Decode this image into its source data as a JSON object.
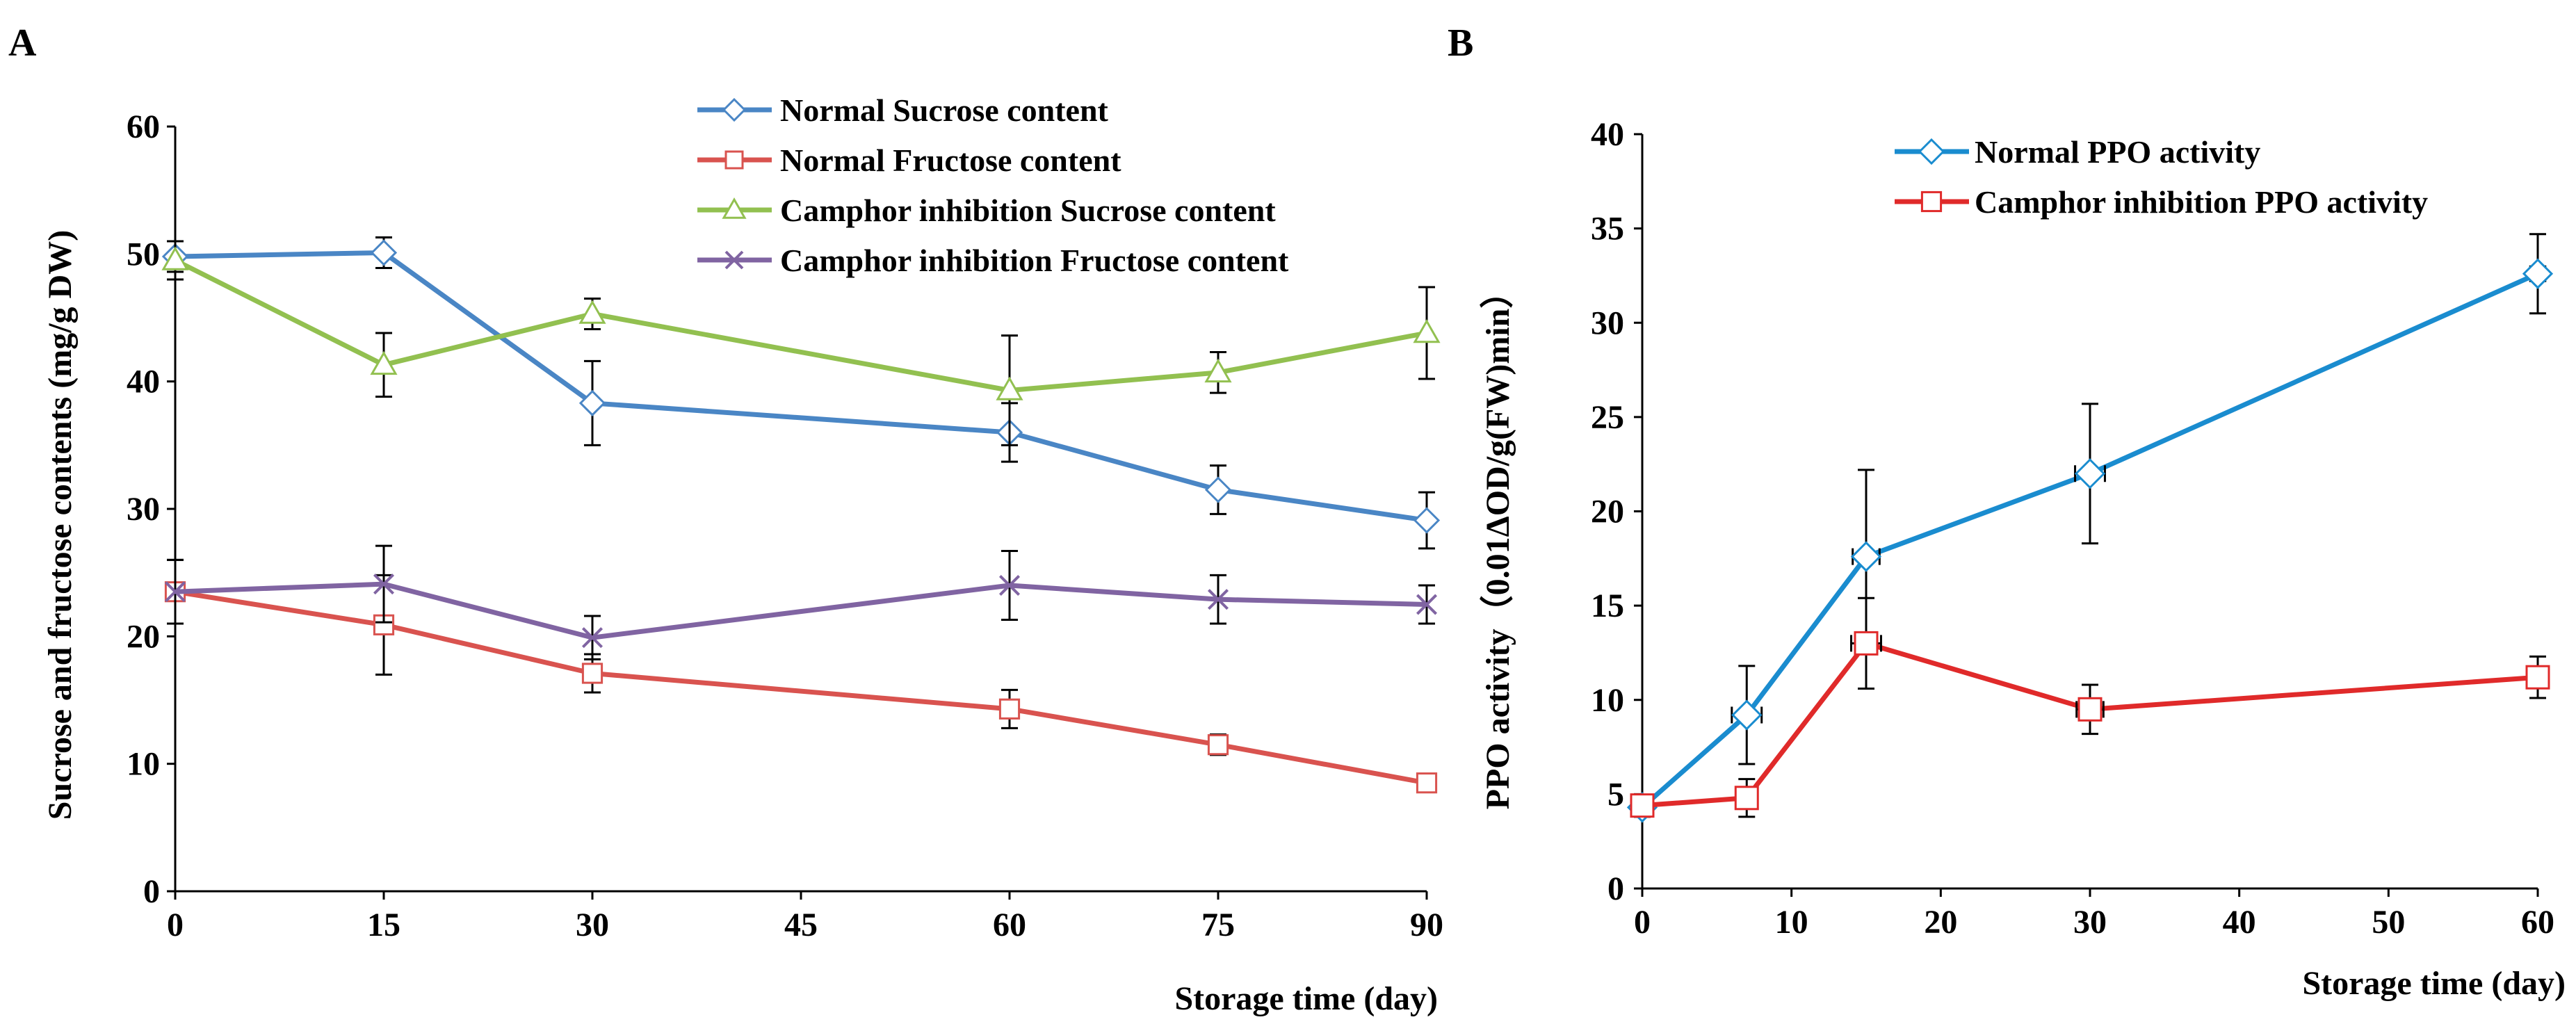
{
  "chart_data": [
    {
      "type": "line",
      "panel_label": "A",
      "xlabel": "Storage time  (day)",
      "ylabel": "Sucrose and fructose contents  (mg/g DW)",
      "x": [
        0,
        15,
        30,
        60,
        75,
        90
      ],
      "x_ticks": [
        "0",
        "15",
        "30",
        "45",
        "60",
        "75",
        "90"
      ],
      "y_ticks": [
        "0",
        "10",
        "20",
        "30",
        "40",
        "50",
        "60"
      ],
      "ylim": [
        0,
        60
      ],
      "grid": false,
      "legend_position": "top-right",
      "series": [
        {
          "name": "Normal  Sucrose content",
          "color": "#4a86c5",
          "marker": "diamond",
          "values": [
            49.8,
            50.1,
            38.3,
            36.0,
            31.5,
            29.1
          ],
          "errors": [
            1.2,
            1.2,
            3.3,
            2.3,
            1.9,
            2.2
          ]
        },
        {
          "name": "Normal  Fructose content",
          "color": "#d9534f",
          "marker": "square",
          "values": [
            23.5,
            20.9,
            17.1,
            14.3,
            11.5,
            8.5
          ],
          "errors": [
            2.5,
            3.9,
            1.5,
            1.5,
            0.8,
            0.6
          ]
        },
        {
          "name": "Camphor inhibition  Sucrose content",
          "color": "#92c050",
          "marker": "triangle",
          "values": [
            49.5,
            41.3,
            45.3,
            39.3,
            40.7,
            43.8
          ],
          "errors": [
            1.5,
            2.5,
            1.2,
            4.3,
            1.6,
            3.6
          ]
        },
        {
          "name": "Camphor inhibition  Fructose content",
          "color": "#8064a2",
          "marker": "x",
          "values": [
            23.5,
            24.1,
            19.9,
            24.0,
            22.9,
            22.5
          ],
          "errors": [
            2.5,
            3.0,
            1.7,
            2.7,
            1.9,
            1.5
          ]
        }
      ]
    },
    {
      "type": "line",
      "panel_label": "B",
      "xlabel": "Storage time (day)",
      "ylabel": "PPO activity（0.01ΔOD/g(FW)min）",
      "x": [
        0,
        7,
        15,
        30,
        60
      ],
      "x_ticks": [
        "0",
        "10",
        "20",
        "30",
        "40",
        "50",
        "60"
      ],
      "y_ticks": [
        "0",
        "5",
        "10",
        "15",
        "20",
        "25",
        "30",
        "35",
        "40"
      ],
      "ylim": [
        0,
        40
      ],
      "xlim": [
        0,
        60
      ],
      "grid": false,
      "legend_position": "top-right",
      "series": [
        {
          "name": "Normal PPO activity",
          "color": "#1a8ccf",
          "marker": "diamond",
          "values": [
            4.3,
            9.2,
            17.6,
            22.0,
            32.6
          ],
          "errors": [
            0.5,
            2.6,
            4.6,
            3.7,
            2.1
          ],
          "x_errors": [
            0.6,
            1.0,
            0.9,
            1.0,
            0.5
          ]
        },
        {
          "name": "Camphor inhibition PPO activity",
          "color": "#e02a2a",
          "marker": "square",
          "values": [
            4.4,
            4.8,
            13.0,
            9.5,
            11.2
          ],
          "errors": [
            0.5,
            1.0,
            2.4,
            1.3,
            1.1
          ],
          "x_errors": [
            0.6,
            0.7,
            1.0,
            0.9,
            0.5
          ]
        }
      ]
    }
  ]
}
